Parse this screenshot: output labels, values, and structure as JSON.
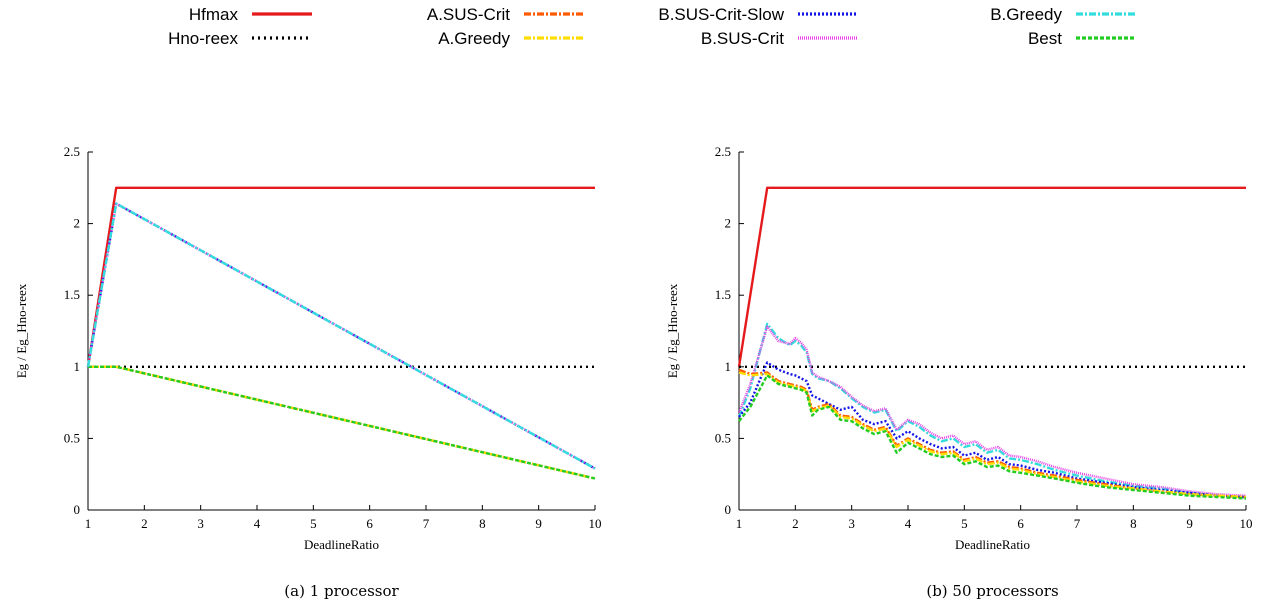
{
  "legend": [
    {
      "name": "Hfmax",
      "color": "#e41a1c",
      "dash": ""
    },
    {
      "name": "Hno-reex",
      "color": "#000000",
      "dash": "2,4"
    },
    {
      "name": "A.SUS-Crit",
      "color": "#ff5a00",
      "dash": "7,2,2,2"
    },
    {
      "name": "A.Greedy",
      "color": "#ffdd00",
      "dash": "7,2,2,2"
    },
    {
      "name": "B.SUS-Crit-Slow",
      "color": "#1414e6",
      "dash": "2,2"
    },
    {
      "name": "B.SUS-Crit",
      "color": "#e642e6",
      "dash": "1,1"
    },
    {
      "name": "B.Greedy",
      "color": "#33dddd",
      "dash": "7,2,2,2"
    },
    {
      "name": "Best",
      "color": "#22cc22",
      "dash": "4,2"
    }
  ],
  "chart_data": [
    {
      "type": "line",
      "caption": "(a) 1 processor",
      "xlabel": "DeadlineRatio",
      "ylabel": "Eg / Eg_Hno-reex",
      "xlim": [
        1,
        10
      ],
      "ylim": [
        0,
        2.5
      ],
      "xticks": [
        1,
        2,
        3,
        4,
        5,
        6,
        7,
        8,
        9,
        10
      ],
      "yticks": [
        0,
        0.5,
        1,
        1.5,
        2,
        2.5
      ],
      "series": [
        {
          "name": "Hfmax",
          "x": [
            1,
            1.5,
            10
          ],
          "y": [
            1,
            2.25,
            2.25
          ]
        },
        {
          "name": "Hno-reex",
          "x": [
            1,
            10
          ],
          "y": [
            1,
            1
          ]
        },
        {
          "name": "A.SUS-Crit",
          "x": [
            1,
            1.5,
            10
          ],
          "y": [
            1,
            1,
            0.22
          ]
        },
        {
          "name": "A.Greedy",
          "x": [
            1,
            1.5,
            10
          ],
          "y": [
            1,
            1,
            0.22
          ]
        },
        {
          "name": "Best",
          "x": [
            1,
            1.5,
            10
          ],
          "y": [
            1,
            1,
            0.22
          ]
        },
        {
          "name": "B.SUS-Crit-Slow",
          "x": [
            1,
            1.5,
            10
          ],
          "y": [
            1,
            2.14,
            0.29
          ]
        },
        {
          "name": "B.SUS-Crit",
          "x": [
            1,
            1.5,
            10
          ],
          "y": [
            1,
            2.14,
            0.29
          ]
        },
        {
          "name": "B.Greedy",
          "x": [
            1,
            1.5,
            10
          ],
          "y": [
            1,
            2.14,
            0.29
          ]
        }
      ]
    },
    {
      "type": "line",
      "caption": "(b) 50 processors",
      "xlabel": "DeadlineRatio",
      "ylabel": "Eg / Eg_Hno-reex",
      "xlim": [
        1,
        10
      ],
      "ylim": [
        0,
        2.5
      ],
      "xticks": [
        1,
        2,
        3,
        4,
        5,
        6,
        7,
        8,
        9,
        10
      ],
      "yticks": [
        0,
        0.5,
        1,
        1.5,
        2,
        2.5
      ],
      "series": [
        {
          "name": "Hfmax",
          "x": [
            1,
            1.5,
            10
          ],
          "y": [
            1,
            2.25,
            2.25
          ]
        },
        {
          "name": "Hno-reex",
          "x": [
            1,
            10
          ],
          "y": [
            1,
            1
          ]
        },
        {
          "name": "B.Greedy",
          "x": [
            1,
            1.2,
            1.5,
            1.7,
            1.9,
            2.0,
            2.1,
            2.2,
            2.3,
            2.4,
            2.6,
            2.8,
            3.0,
            3.2,
            3.4,
            3.6,
            3.8,
            4.0,
            4.2,
            4.4,
            4.6,
            4.8,
            5.0,
            5.2,
            5.4,
            5.6,
            5.8,
            6.0,
            6.3,
            6.6,
            7.0,
            7.5,
            8.0,
            8.5,
            9.0,
            9.5,
            10.0
          ],
          "y": [
            0.65,
            0.85,
            1.3,
            1.2,
            1.15,
            1.18,
            1.15,
            1.1,
            0.95,
            0.92,
            0.9,
            0.85,
            0.78,
            0.72,
            0.68,
            0.7,
            0.55,
            0.62,
            0.58,
            0.52,
            0.48,
            0.5,
            0.44,
            0.46,
            0.4,
            0.42,
            0.36,
            0.35,
            0.32,
            0.28,
            0.24,
            0.2,
            0.17,
            0.15,
            0.12,
            0.1,
            0.09
          ]
        },
        {
          "name": "B.SUS-Crit",
          "x": [
            1,
            1.2,
            1.5,
            1.7,
            1.9,
            2.0,
            2.1,
            2.2,
            2.3,
            2.4,
            2.6,
            2.8,
            3.0,
            3.2,
            3.4,
            3.6,
            3.8,
            4.0,
            4.2,
            4.4,
            4.6,
            4.8,
            5.0,
            5.2,
            5.4,
            5.6,
            5.8,
            6.0,
            6.3,
            6.6,
            7.0,
            7.5,
            8.0,
            8.5,
            9.0,
            9.5,
            10.0
          ],
          "y": [
            0.68,
            0.88,
            1.28,
            1.18,
            1.16,
            1.2,
            1.17,
            1.12,
            0.96,
            0.93,
            0.9,
            0.86,
            0.79,
            0.73,
            0.69,
            0.71,
            0.56,
            0.63,
            0.6,
            0.54,
            0.5,
            0.52,
            0.46,
            0.48,
            0.42,
            0.44,
            0.38,
            0.37,
            0.34,
            0.3,
            0.26,
            0.22,
            0.18,
            0.16,
            0.13,
            0.11,
            0.1
          ]
        },
        {
          "name": "B.SUS-Crit-Slow",
          "x": [
            1,
            1.2,
            1.5,
            1.7,
            1.9,
            2.0,
            2.1,
            2.2,
            2.3,
            2.4,
            2.6,
            2.8,
            3.0,
            3.2,
            3.4,
            3.6,
            3.8,
            4.0,
            4.2,
            4.4,
            4.6,
            4.8,
            5.0,
            5.2,
            5.4,
            5.6,
            5.8,
            6.0,
            6.3,
            6.6,
            7.0,
            7.5,
            8.0,
            8.5,
            9.0,
            9.5,
            10.0
          ],
          "y": [
            0.65,
            0.75,
            1.03,
            0.98,
            0.95,
            0.94,
            0.92,
            0.9,
            0.8,
            0.78,
            0.74,
            0.7,
            0.72,
            0.63,
            0.6,
            0.62,
            0.5,
            0.55,
            0.5,
            0.46,
            0.43,
            0.44,
            0.38,
            0.4,
            0.35,
            0.37,
            0.32,
            0.31,
            0.28,
            0.26,
            0.22,
            0.19,
            0.16,
            0.14,
            0.12,
            0.1,
            0.09
          ]
        },
        {
          "name": "A.SUS-Crit",
          "x": [
            1,
            1.2,
            1.5,
            1.7,
            1.9,
            2.0,
            2.1,
            2.2,
            2.3,
            2.4,
            2.6,
            2.8,
            3.0,
            3.2,
            3.4,
            3.6,
            3.8,
            4.0,
            4.2,
            4.4,
            4.6,
            4.8,
            5.0,
            5.2,
            5.4,
            5.6,
            5.8,
            6.0,
            6.3,
            6.6,
            7.0,
            7.5,
            8.0,
            8.5,
            9.0,
            9.5,
            10.0
          ],
          "y": [
            0.98,
            0.95,
            0.96,
            0.9,
            0.88,
            0.87,
            0.86,
            0.84,
            0.7,
            0.72,
            0.74,
            0.66,
            0.65,
            0.6,
            0.56,
            0.58,
            0.45,
            0.5,
            0.46,
            0.42,
            0.4,
            0.41,
            0.35,
            0.37,
            0.33,
            0.34,
            0.3,
            0.29,
            0.26,
            0.24,
            0.21,
            0.18,
            0.15,
            0.13,
            0.11,
            0.1,
            0.09
          ]
        },
        {
          "name": "A.Greedy",
          "x": [
            1,
            1.2,
            1.5,
            1.7,
            1.9,
            2.0,
            2.1,
            2.2,
            2.3,
            2.4,
            2.6,
            2.8,
            3.0,
            3.2,
            3.4,
            3.6,
            3.8,
            4.0,
            4.2,
            4.4,
            4.6,
            4.8,
            5.0,
            5.2,
            5.4,
            5.6,
            5.8,
            6.0,
            6.3,
            6.6,
            7.0,
            7.5,
            8.0,
            8.5,
            9.0,
            9.5,
            10.0
          ],
          "y": [
            0.96,
            0.94,
            0.95,
            0.89,
            0.87,
            0.86,
            0.85,
            0.83,
            0.69,
            0.71,
            0.73,
            0.65,
            0.64,
            0.59,
            0.55,
            0.57,
            0.44,
            0.49,
            0.45,
            0.41,
            0.39,
            0.4,
            0.34,
            0.36,
            0.32,
            0.33,
            0.29,
            0.28,
            0.25,
            0.23,
            0.2,
            0.17,
            0.15,
            0.13,
            0.11,
            0.1,
            0.09
          ]
        },
        {
          "name": "Best",
          "x": [
            1,
            1.2,
            1.5,
            1.7,
            1.9,
            2.0,
            2.1,
            2.2,
            2.3,
            2.4,
            2.6,
            2.8,
            3.0,
            3.2,
            3.4,
            3.6,
            3.8,
            4.0,
            4.2,
            4.4,
            4.6,
            4.8,
            5.0,
            5.2,
            5.4,
            5.6,
            5.8,
            6.0,
            6.3,
            6.6,
            7.0,
            7.5,
            8.0,
            8.5,
            9.0,
            9.5,
            10.0
          ],
          "y": [
            0.62,
            0.72,
            0.94,
            0.88,
            0.86,
            0.85,
            0.84,
            0.82,
            0.66,
            0.7,
            0.72,
            0.63,
            0.62,
            0.57,
            0.53,
            0.55,
            0.4,
            0.47,
            0.43,
            0.39,
            0.37,
            0.38,
            0.32,
            0.34,
            0.3,
            0.31,
            0.27,
            0.26,
            0.24,
            0.22,
            0.19,
            0.16,
            0.14,
            0.12,
            0.1,
            0.09,
            0.08
          ]
        }
      ]
    }
  ]
}
